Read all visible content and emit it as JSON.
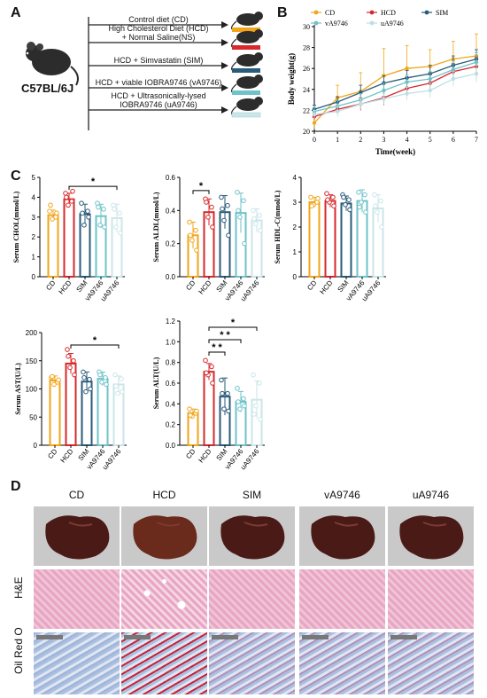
{
  "panels": {
    "A": "A",
    "B": "B",
    "C": "C",
    "D": "D"
  },
  "panel_a": {
    "strain": "C57BL/6J",
    "groups": [
      {
        "label": "Control diet (CD)",
        "color": "#f2a51a"
      },
      {
        "label": "High Cholesterol Diet (HCD)\n+ Normal Saline(NS)",
        "color": "#d7282b"
      },
      {
        "label": "HCD + Simvastatin (SIM)",
        "color": "#2a5b79"
      },
      {
        "label": "HCD + viable IOBRA9746 (vA9746)",
        "color": "#6ec3c9"
      },
      {
        "label": "HCD + Ultrasonically-lysed\nIOBRA9746 (uA9746)",
        "color": "#cbe6ea"
      }
    ]
  },
  "panel_d": {
    "columns": [
      "CD",
      "HCD",
      "SIM",
      "vA9746",
      "uA9746"
    ],
    "rows": [
      "H&E",
      "Oil Red O"
    ]
  },
  "chart_data": [
    {
      "id": "body-weight",
      "type": "line",
      "xlabel": "Time(week)",
      "ylabel": "Body weight(g)",
      "x": [
        0,
        1,
        2,
        3,
        4,
        5,
        6,
        7
      ],
      "xlim": [
        0,
        7
      ],
      "ylim": [
        20,
        30
      ],
      "yticks": [
        20,
        22,
        24,
        26,
        28,
        30
      ],
      "legend_position": "top",
      "series": [
        {
          "name": "CD",
          "color": "#f2a51a",
          "marker": "circle",
          "values": [
            20.8,
            23.2,
            23.8,
            25.3,
            26,
            26.2,
            26.9,
            27.2
          ],
          "err": [
            0.6,
            1.2,
            1.8,
            2.6,
            2.2,
            1.6,
            1.7,
            2.1
          ]
        },
        {
          "name": "HCD",
          "color": "#d7282b",
          "marker": "triangle-down",
          "values": [
            21.4,
            22.1,
            22.6,
            23.2,
            24.1,
            24.6,
            25.7,
            26.2
          ],
          "err": [
            0.3,
            0.4,
            0.6,
            0.7,
            0.7,
            0.8,
            0.8,
            0.9
          ]
        },
        {
          "name": "SIM",
          "color": "#2a5b79",
          "marker": "triangle-up",
          "values": [
            22.1,
            22.8,
            23.7,
            24.6,
            25.1,
            25.5,
            26.3,
            26.9
          ],
          "err": [
            0.4,
            0.5,
            0.7,
            0.7,
            0.7,
            0.8,
            0.9,
            0.9
          ]
        },
        {
          "name": "vA9746",
          "color": "#6ec3c9",
          "marker": "triangle-down",
          "values": [
            21.9,
            22.4,
            23,
            23.9,
            24.7,
            25,
            25.9,
            26.6
          ],
          "err": [
            0.5,
            0.5,
            0.6,
            0.7,
            0.7,
            0.7,
            0.8,
            0.9
          ]
        },
        {
          "name": "uA9746",
          "color": "#bcdfe4",
          "marker": "circle",
          "values": [
            21.6,
            21.9,
            22.6,
            23.1,
            23.6,
            23.9,
            25,
            25.5
          ],
          "err": [
            0.4,
            0.5,
            0.5,
            0.5,
            0.6,
            0.7,
            0.7,
            0.8
          ]
        }
      ]
    },
    {
      "id": "chol",
      "type": "bar",
      "ylabel": "Serum CHOL(mmol/L)",
      "ylim": [
        0,
        5
      ],
      "yticks": [
        0,
        1,
        2,
        3,
        4,
        5
      ],
      "categories": [
        "CD",
        "HCD",
        "SIM",
        "vA9746",
        "uA9746"
      ],
      "values": [
        3.1,
        3.9,
        3.15,
        3.05,
        2.95
      ],
      "err": [
        0.25,
        0.3,
        0.5,
        0.6,
        0.7
      ],
      "points": [
        [
          3.3,
          3.0,
          2.9,
          3.2,
          3.6
        ],
        [
          4.2,
          3.8,
          3.6,
          4.3,
          4.0
        ],
        [
          3.7,
          3.3,
          2.6,
          3.0,
          3.2
        ],
        [
          3.7,
          3.4,
          2.6,
          2.5,
          3.5
        ],
        [
          3.6,
          3.2,
          2.5,
          2.2,
          3.4
        ]
      ],
      "sig": [
        {
          "from": 1,
          "to": 4,
          "label": "*",
          "y": 4.55
        }
      ]
    },
    {
      "id": "aldl",
      "type": "bar",
      "ylabel": "Serum ALDL(mmol/L)",
      "ylim": [
        0,
        0.6
      ],
      "yticks": [
        0.0,
        0.2,
        0.4,
        0.6
      ],
      "categories": [
        "CD",
        "HCD",
        "SIM",
        "vA9746",
        "uA9746"
      ],
      "values": [
        0.25,
        0.39,
        0.39,
        0.385,
        0.34
      ],
      "err": [
        0.08,
        0.08,
        0.1,
        0.12,
        0.07
      ],
      "points": [
        [
          0.33,
          0.28,
          0.22,
          0.16,
          0.25
        ],
        [
          0.47,
          0.42,
          0.36,
          0.3,
          0.45
        ],
        [
          0.48,
          0.43,
          0.34,
          0.25,
          0.41
        ],
        [
          0.51,
          0.46,
          0.36,
          0.2,
          0.4
        ],
        [
          0.4,
          0.37,
          0.32,
          0.28,
          0.35
        ]
      ],
      "sig": [
        {
          "from": 0,
          "to": 1,
          "label": "*",
          "y": 0.52
        }
      ]
    },
    {
      "id": "hdlc",
      "type": "bar",
      "ylabel": "Serum HDL-C(mmol/L)",
      "ylim": [
        0,
        4
      ],
      "yticks": [
        0,
        1,
        2,
        3,
        4
      ],
      "categories": [
        "CD",
        "HCD",
        "SIM",
        "vA9746",
        "uA9746"
      ],
      "values": [
        3.0,
        3.05,
        2.95,
        3.05,
        2.75
      ],
      "err": [
        0.2,
        0.25,
        0.3,
        0.45,
        0.55
      ],
      "points": [
        [
          3.2,
          3.0,
          2.9,
          3.15,
          2.85
        ],
        [
          3.35,
          3.2,
          3.0,
          2.85,
          3.1
        ],
        [
          3.3,
          3.1,
          2.9,
          2.7,
          3.2
        ],
        [
          3.4,
          3.3,
          3.0,
          2.6,
          2.8
        ],
        [
          3.3,
          3.05,
          2.6,
          2.0,
          2.85
        ]
      ],
      "sig": []
    },
    {
      "id": "ast",
      "type": "bar",
      "ylabel": "Serum AST(U/L)",
      "ylim": [
        0,
        200
      ],
      "yticks": [
        0,
        50,
        100,
        150,
        200
      ],
      "categories": [
        "CD",
        "HCD",
        "SIM",
        "vA9746",
        "uA9746"
      ],
      "values": [
        115,
        145,
        113,
        118,
        108
      ],
      "err": [
        8,
        18,
        17,
        12,
        15
      ],
      "points": [
        [
          120,
          112,
          108,
          116,
          122
        ],
        [
          170,
          150,
          138,
          125,
          158
        ],
        [
          130,
          117,
          95,
          100,
          120
        ],
        [
          130,
          120,
          112,
          108,
          125
        ],
        [
          125,
          118,
          92,
          95,
          105
        ]
      ],
      "sig": [
        {
          "from": 1,
          "to": 4,
          "label": "*",
          "y": 178
        }
      ]
    },
    {
      "id": "alt",
      "type": "bar",
      "ylabel": "Serum ALT(U/L)",
      "ylim": [
        0,
        1.2
      ],
      "yticks": [
        0.0,
        0.2,
        0.4,
        0.6,
        0.8,
        1.0,
        1.2
      ],
      "categories": [
        "CD",
        "HCD",
        "SIM",
        "vA9746",
        "uA9746"
      ],
      "values": [
        0.31,
        0.71,
        0.47,
        0.42,
        0.44
      ],
      "err": [
        0.04,
        0.08,
        0.18,
        0.1,
        0.18
      ],
      "points": [
        [
          0.35,
          0.31,
          0.28,
          0.33,
          0.29
        ],
        [
          0.82,
          0.76,
          0.68,
          0.6,
          0.7
        ],
        [
          0.63,
          0.5,
          0.35,
          0.33,
          0.5
        ],
        [
          0.55,
          0.45,
          0.35,
          0.38,
          0.42
        ],
        [
          0.68,
          0.6,
          0.38,
          0.25,
          0.3
        ]
      ],
      "sig": [
        {
          "from": 1,
          "to": 2,
          "label": "* *",
          "y": 0.9
        },
        {
          "from": 1,
          "to": 3,
          "label": "* *",
          "y": 1.02
        },
        {
          "from": 1,
          "to": 4,
          "label": "*",
          "y": 1.14
        }
      ]
    }
  ]
}
